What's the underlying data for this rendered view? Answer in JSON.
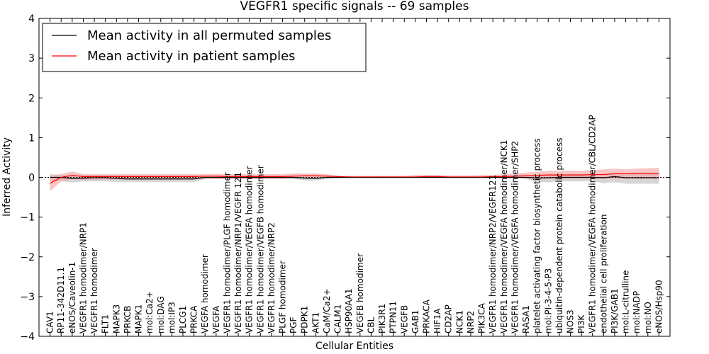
{
  "chart_data": {
    "type": "line",
    "title": "VEGFR1 specific signals -- 69 samples",
    "xlabel": "Cellular Entities",
    "ylabel": "Inferred Activity",
    "ylim": [
      -4,
      4
    ],
    "yticks": [
      -4,
      -3,
      -2,
      -1,
      0,
      1,
      2,
      3,
      4
    ],
    "ytick_labels": [
      "−4",
      "−3",
      "−2",
      "−1",
      "0",
      "1",
      "2",
      "3",
      "4"
    ],
    "grid": false,
    "legend_position": "top-left",
    "categories": [
      "CAV1",
      "RP11-342D11.1",
      "eNOS/Caveolin-1",
      "VEGFR1 homodimer/NRP1",
      "VEGFR1 homodimer",
      "FLT1",
      "MAPK3",
      "PRKCB",
      "MAPK1",
      "mol:Ca2+",
      "mol:DAG",
      "mol:IP3",
      "PLCG1",
      "PRKCA",
      "VEGFA homodimer",
      "VEGFA",
      "VEGFR1 homodimer/PLGF homodimer",
      "VEGFR1 homodimer/NRP1/VEGFR 121",
      "VEGFR1 homodimer/VEGFA homodimer",
      "VEGFR1 homodimer/VEGFB homodimer",
      "VEGFR1 homodimer/NRP2",
      "PLGF homodimer",
      "PGF",
      "PDPK1",
      "AKT1",
      "CaM/Ca2+",
      "CALM1",
      "HSP90AA1",
      "VEGFB homodimer",
      "CBL",
      "PIK3R1",
      "PTPN11",
      "VEGFB",
      "GAB1",
      "PRKACA",
      "HIF1A",
      "CD2AP",
      "NCK1",
      "NRP2",
      "PIK3CA",
      "VEGFR1 homodimer/NRP2/VEGFR121",
      "VEGFR1 homodimer/VEGFA homodimer/NCK1",
      "VEGFR1 homodimer/VEGFA homodimer/SHP2",
      "RASA1",
      "platelet activating factor biosynthetic process",
      "mol:PI-3-4-5-P3",
      "ubiquitin-dependent protein catabolic process",
      "NOS3",
      "PI3K",
      "VEGFR1 homodimer/VEGFA homodimer/CBL/CD2AP",
      "endothelial cell proliferation",
      "PI3K/GAB1",
      "mol:L-citrulline",
      "mol:NADP",
      "mol:NO",
      "eNOS/Hsp90"
    ],
    "series": [
      {
        "name": "Mean activity in all permuted samples",
        "color": "#000000",
        "band_color": "#c8c8c8",
        "values": [
          0.0,
          0.0,
          -0.03,
          -0.02,
          -0.01,
          -0.01,
          -0.03,
          -0.04,
          -0.04,
          -0.04,
          -0.04,
          -0.04,
          -0.04,
          -0.04,
          0.0,
          0.0,
          0.0,
          0.0,
          0.0,
          0.0,
          0.0,
          0.0,
          0.0,
          -0.02,
          -0.03,
          0.0,
          0.0,
          0.0,
          0.0,
          0.0,
          0.0,
          0.0,
          0.0,
          0.0,
          0.0,
          0.0,
          0.0,
          0.0,
          0.0,
          0.0,
          0.0,
          0.0,
          0.0,
          0.0,
          -0.02,
          -0.01,
          0.0,
          0.0,
          0.0,
          0.0,
          -0.01,
          0.02,
          -0.01,
          -0.01,
          -0.01,
          -0.01
        ],
        "lower": [
          -0.1,
          -0.1,
          -0.13,
          -0.1,
          -0.1,
          -0.1,
          -0.12,
          -0.12,
          -0.12,
          -0.12,
          -0.12,
          -0.12,
          -0.12,
          -0.12,
          -0.04,
          -0.04,
          -0.04,
          -0.04,
          -0.04,
          -0.04,
          -0.04,
          -0.04,
          -0.04,
          -0.08,
          -0.08,
          -0.04,
          -0.03,
          -0.02,
          -0.02,
          -0.02,
          -0.02,
          -0.02,
          -0.02,
          -0.02,
          -0.02,
          -0.02,
          -0.02,
          -0.02,
          -0.02,
          -0.02,
          -0.02,
          -0.02,
          -0.02,
          -0.04,
          -0.12,
          -0.12,
          -0.1,
          -0.1,
          -0.1,
          -0.1,
          -0.15,
          -0.12,
          -0.16,
          -0.16,
          -0.16,
          -0.16
        ],
        "upper": [
          0.08,
          0.06,
          0.05,
          0.05,
          0.06,
          0.06,
          0.05,
          0.05,
          0.05,
          0.05,
          0.05,
          0.05,
          0.05,
          0.05,
          0.04,
          0.04,
          0.04,
          0.04,
          0.04,
          0.04,
          0.04,
          0.04,
          0.04,
          0.04,
          0.04,
          0.03,
          0.02,
          0.02,
          0.02,
          0.02,
          0.02,
          0.02,
          0.02,
          0.02,
          0.02,
          0.02,
          0.02,
          0.02,
          0.02,
          0.02,
          0.02,
          0.02,
          0.02,
          0.04,
          0.06,
          0.08,
          0.08,
          0.08,
          0.08,
          0.08,
          0.08,
          0.1,
          0.1,
          0.1,
          0.1,
          0.1
        ]
      },
      {
        "name": "Mean activity in patient samples",
        "color": "#ff0000",
        "band_color": "#f4a0a0",
        "values": [
          -0.15,
          0.0,
          0.05,
          0.02,
          0.02,
          0.02,
          0.02,
          0.02,
          0.02,
          0.02,
          0.02,
          0.02,
          0.02,
          0.02,
          0.03,
          0.03,
          0.02,
          0.02,
          0.02,
          0.02,
          0.02,
          0.02,
          0.03,
          0.04,
          0.04,
          0.03,
          0.02,
          0.01,
          0.01,
          0.01,
          0.01,
          0.01,
          0.01,
          0.01,
          0.02,
          0.02,
          0.01,
          0.01,
          0.01,
          0.01,
          0.02,
          0.02,
          0.03,
          0.04,
          0.05,
          0.06,
          0.06,
          0.06,
          0.06,
          0.07,
          0.07,
          0.09,
          0.09,
          0.1,
          0.1,
          0.1
        ],
        "lower": [
          -0.35,
          -0.1,
          -0.05,
          -0.06,
          -0.06,
          -0.06,
          -0.06,
          -0.06,
          -0.06,
          -0.06,
          -0.06,
          -0.06,
          -0.06,
          -0.06,
          -0.04,
          -0.04,
          -0.04,
          -0.04,
          -0.04,
          -0.04,
          -0.04,
          -0.04,
          -0.02,
          -0.02,
          -0.02,
          -0.01,
          -0.01,
          -0.01,
          -0.01,
          -0.01,
          -0.01,
          -0.01,
          -0.01,
          -0.01,
          -0.01,
          -0.01,
          -0.01,
          -0.01,
          -0.01,
          -0.01,
          -0.02,
          -0.03,
          -0.03,
          -0.03,
          -0.04,
          -0.04,
          -0.04,
          -0.04,
          -0.04,
          -0.04,
          -0.04,
          -0.04,
          -0.04,
          -0.04,
          -0.04,
          -0.04
        ],
        "upper": [
          0.05,
          0.08,
          0.15,
          0.08,
          0.08,
          0.08,
          0.08,
          0.08,
          0.08,
          0.08,
          0.08,
          0.08,
          0.08,
          0.08,
          0.08,
          0.08,
          0.08,
          0.08,
          0.08,
          0.08,
          0.08,
          0.08,
          0.1,
          0.1,
          0.1,
          0.08,
          0.04,
          0.04,
          0.04,
          0.04,
          0.04,
          0.04,
          0.04,
          0.06,
          0.06,
          0.06,
          0.05,
          0.05,
          0.05,
          0.06,
          0.06,
          0.08,
          0.1,
          0.12,
          0.14,
          0.16,
          0.17,
          0.17,
          0.17,
          0.18,
          0.2,
          0.22,
          0.2,
          0.22,
          0.23,
          0.24
        ]
      }
    ]
  }
}
